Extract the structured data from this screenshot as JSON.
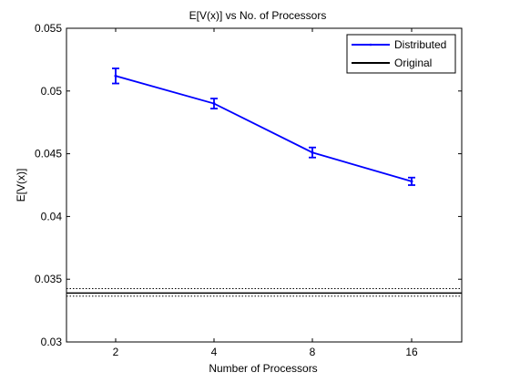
{
  "chart_data": {
    "type": "line",
    "title": "E[V(x)] vs No. of Processors",
    "xlabel": "Number of Processors",
    "ylabel": "E[V(x)]",
    "categories": [
      "2",
      "4",
      "8",
      "16"
    ],
    "ylim": [
      0.03,
      0.055
    ],
    "yticks": [
      0.03,
      0.035,
      0.04,
      0.045,
      0.05,
      0.055
    ],
    "ytick_labels": [
      "0.03",
      "0.035",
      "0.04",
      "0.045",
      "0.05",
      "0.055"
    ],
    "series": [
      {
        "name": "Distributed",
        "color": "#0000ff",
        "values": [
          0.0512,
          0.049,
          0.0451,
          0.0428
        ],
        "errors": [
          0.0006,
          0.0004,
          0.0004,
          0.0003
        ]
      }
    ],
    "reference": {
      "name": "Original",
      "color": "#000000",
      "value": 0.0339,
      "band": [
        0.03365,
        0.03425
      ]
    },
    "legend": {
      "position": "top-right",
      "entries": [
        "Distributed",
        "Original"
      ]
    },
    "grid": false
  }
}
